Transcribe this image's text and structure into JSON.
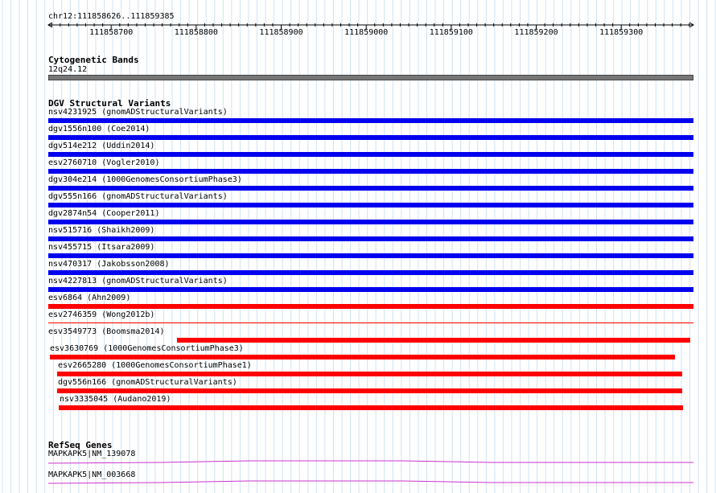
{
  "ruler": {
    "location": "chr12:111858626..111859385",
    "start": 111858626,
    "end": 111859385,
    "ticks": [
      "111858700",
      "111858800",
      "111858900",
      "111859000",
      "111859100",
      "111859200",
      "111859300"
    ]
  },
  "cytobands": {
    "title": "Cytogenetic Bands",
    "band_label": "12q24.12",
    "band_color": "#777777"
  },
  "dgv": {
    "title": "DGV Structural Variants",
    "colors": {
      "gain": "#0000ee",
      "loss": "#ff0000"
    },
    "features": [
      {
        "label": "nsv4231925 (gnomADStructuralVariants)",
        "color": "#0000ee",
        "start": 111858626,
        "end": 111859385
      },
      {
        "label": "dgv1556n100 (Coe2014)",
        "color": "#0000ee",
        "start": 111858626,
        "end": 111859385
      },
      {
        "label": "dgv514e212 (Uddin2014)",
        "color": "#0000ee",
        "start": 111858626,
        "end": 111859385
      },
      {
        "label": "esv2760710 (Vogler2010)",
        "color": "#0000ee",
        "start": 111858626,
        "end": 111859385
      },
      {
        "label": "dgv304e214 (1000GenomesConsortiumPhase3)",
        "color": "#0000ee",
        "start": 111858626,
        "end": 111859385
      },
      {
        "label": "dgv555n166 (gnomADStructuralVariants)",
        "color": "#0000ee",
        "start": 111858626,
        "end": 111859385
      },
      {
        "label": "dgv2874n54 (Cooper2011)",
        "color": "#0000ee",
        "start": 111858626,
        "end": 111859385
      },
      {
        "label": "nsv515716 (Shaikh2009)",
        "color": "#0000ee",
        "start": 111858626,
        "end": 111859385
      },
      {
        "label": "nsv455715 (Itsara2009)",
        "color": "#0000ee",
        "start": 111858626,
        "end": 111859385
      },
      {
        "label": "nsv470317 (Jakobsson2008)",
        "color": "#0000ee",
        "start": 111858626,
        "end": 111859385
      },
      {
        "label": "nsv4227813 (gnomADStructuralVariants)",
        "color": "#0000ee",
        "start": 111858626,
        "end": 111859385
      },
      {
        "label": "esv6864 (Ahn2009)",
        "color": "#ff0000",
        "start": 111858626,
        "end": 111859385
      },
      {
        "label": "esv2746359 (Wong2012b)",
        "color": "#ff0000",
        "start": 111858626,
        "end": 111859385
      },
      {
        "label": "esv3549773 (Boomsma2014)",
        "color": "#ff0000",
        "start": 111858777,
        "end": 111859381
      },
      {
        "label": "esv3630769 (1000GenomesConsortiumPhase3)",
        "color": "#ff0000",
        "start": 111858628,
        "end": 111859363
      },
      {
        "label": "esv2665280 (1000GenomesConsortiumPhase1)",
        "color": "#ff0000",
        "start": 111858636,
        "end": 111859372
      },
      {
        "label": "dgv556n166 (gnomADStructuralVariants)",
        "color": "#ff0000",
        "start": 111858636,
        "end": 111859372
      },
      {
        "label": "nsv3335045 (Audano2019)",
        "color": "#ff0000",
        "start": 111858638,
        "end": 111859373
      }
    ]
  },
  "refseq": {
    "title": "RefSeq Genes",
    "color": "#cc33cc",
    "genes": [
      {
        "label": "MAPKAPK5|NM_139078"
      },
      {
        "label": "MAPKAPK5|NM_003668"
      }
    ]
  }
}
